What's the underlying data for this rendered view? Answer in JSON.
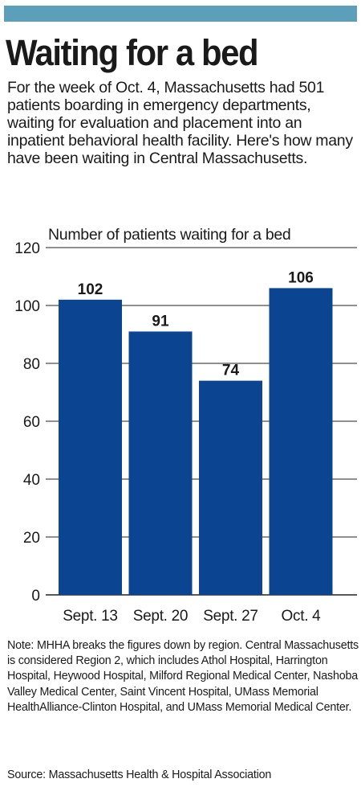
{
  "colors": {
    "accent_bar": "#5b9fba",
    "bar_fill": "#0b4592",
    "gridline": "#222222",
    "text": "#1a1a1a"
  },
  "headline": "Waiting for a bed",
  "intro": "For the week of Oct. 4, Massachusetts had 501 patients boarding in emergency departments, waiting for evaluation and placement into an inpatient behavioral health facility. Here's how many have been waiting in Central Massachusetts.",
  "note": "Note: MHHA breaks the figures down by region. Central Massachusetts is considered Region 2, which includes Athol Hospital, Harrington Hospital, Heywood Hospital, Milford Regional Medical Center, Nashoba Valley Medical Center, Saint Vincent Hospital, UMass Memorial HealthAlliance-Clinton Hospital, and UMass Memorial Medical Center.",
  "source": "Source: Massachusetts Health & Hospital Association",
  "chart_data": {
    "type": "bar",
    "title": "Number of patients waiting for a bed",
    "categories": [
      "Sept. 13",
      "Sept. 20",
      "Sept. 27",
      "Oct. 4"
    ],
    "values": [
      102,
      91,
      74,
      106
    ],
    "data_labels": [
      "102",
      "91",
      "74",
      "106"
    ],
    "ylim": [
      0,
      120
    ],
    "yticks": [
      0,
      20,
      40,
      60,
      80,
      100,
      120
    ],
    "grid": true,
    "xlabel": "",
    "ylabel": ""
  }
}
